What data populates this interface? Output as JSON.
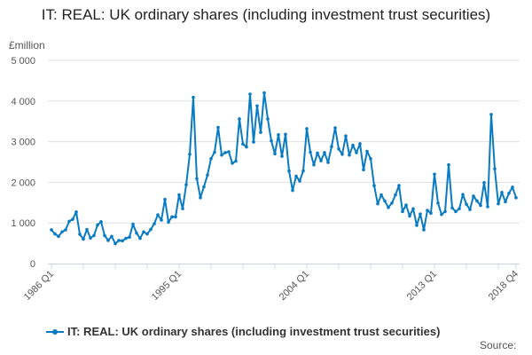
{
  "chart_data": {
    "type": "line",
    "title": "IT: REAL: UK ordinary shares (including investment trust securities)",
    "ylabel": "£million",
    "ylim": [
      0,
      5000
    ],
    "y_ticks": [
      "0",
      "1 000",
      "2 000",
      "3 000",
      "4 000",
      "5 000"
    ],
    "x_start": "1986 Q1",
    "x_end": "2018 Q4",
    "x_tick_labels": [
      "1986 Q1",
      "1995 Q1",
      "2004 Q1",
      "2013 Q1",
      "2018 Q4"
    ],
    "grid": "horizontal",
    "legend_position": "bottom",
    "series": [
      {
        "name": "IT: REAL: UK ordinary shares (including investment trust securities)",
        "color": "#0a7bc1",
        "values": [
          830,
          730,
          670,
          780,
          830,
          1040,
          1090,
          1270,
          720,
          600,
          840,
          630,
          690,
          950,
          1030,
          690,
          570,
          670,
          490,
          570,
          560,
          620,
          650,
          970,
          750,
          620,
          780,
          730,
          840,
          980,
          1200,
          1070,
          1580,
          1020,
          1150,
          1150,
          1690,
          1350,
          1940,
          2690,
          4090,
          2090,
          1620,
          1890,
          2180,
          2580,
          2740,
          3350,
          2670,
          2730,
          2750,
          2470,
          2520,
          3560,
          2940,
          2870,
          4170,
          2990,
          3880,
          3230,
          4200,
          3560,
          3020,
          2700,
          3170,
          2640,
          3180,
          2280,
          1800,
          2150,
          2030,
          2280,
          3320,
          2740,
          2430,
          2720,
          2530,
          2730,
          2490,
          2880,
          3340,
          2820,
          2690,
          3140,
          2670,
          2910,
          2730,
          2950,
          2310,
          2760,
          2580,
          1920,
          1470,
          1690,
          1540,
          1380,
          1490,
          1690,
          1920,
          1280,
          1440,
          1170,
          1350,
          940,
          1220,
          830,
          1310,
          1240,
          2200,
          1490,
          1210,
          1280,
          2430,
          1370,
          1280,
          1350,
          1700,
          1460,
          1330,
          1660,
          1540,
          1430,
          1990,
          1400,
          3670,
          2330,
          1470,
          1750,
          1520,
          1730,
          1880,
          1620
        ]
      }
    ]
  },
  "source_label": "Source:"
}
